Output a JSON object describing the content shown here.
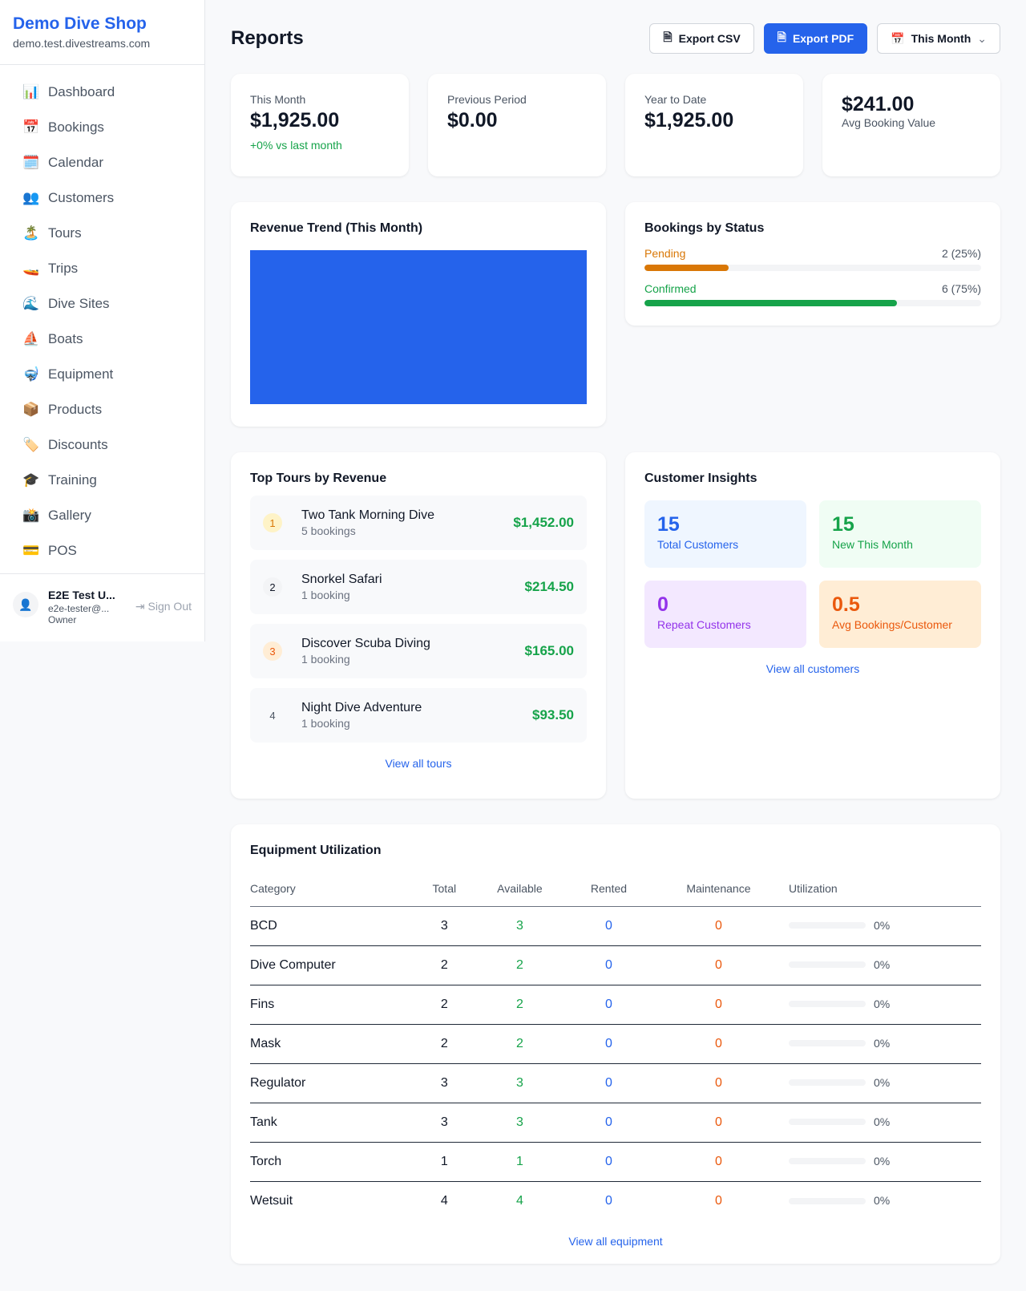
{
  "sidebar": {
    "brand": "Demo Dive Shop",
    "domain": "demo.test.divestreams.com",
    "items": [
      {
        "icon": "📊",
        "label": "Dashboard"
      },
      {
        "icon": "📅",
        "label": "Bookings"
      },
      {
        "icon": "🗓️",
        "label": "Calendar"
      },
      {
        "icon": "👥",
        "label": "Customers"
      },
      {
        "icon": "🏝️",
        "label": "Tours"
      },
      {
        "icon": "🚤",
        "label": "Trips"
      },
      {
        "icon": "🌊",
        "label": "Dive Sites"
      },
      {
        "icon": "⛵",
        "label": "Boats"
      },
      {
        "icon": "🤿",
        "label": "Equipment"
      },
      {
        "icon": "📦",
        "label": "Products"
      },
      {
        "icon": "🏷️",
        "label": "Discounts"
      },
      {
        "icon": "🎓",
        "label": "Training"
      },
      {
        "icon": "📸",
        "label": "Gallery"
      },
      {
        "icon": "💳",
        "label": "POS"
      }
    ],
    "user": {
      "name": "E2E Test U...",
      "email": "e2e-tester@...",
      "role": "Owner",
      "sign_out": "Sign Out"
    }
  },
  "header": {
    "title": "Reports",
    "export_csv": "Export CSV",
    "export_pdf": "Export PDF",
    "period": "This Month"
  },
  "stats": [
    {
      "label": "This Month",
      "value": "$1,925.00",
      "change": "+0% vs last month"
    },
    {
      "label": "Previous Period",
      "value": "$0.00"
    },
    {
      "label": "Year to Date",
      "value": "$1,925.00"
    },
    {
      "value": "$241.00",
      "label": "Avg Booking Value"
    }
  ],
  "revenue": {
    "title": "Revenue Trend (This Month)"
  },
  "bookings_status": {
    "title": "Bookings by Status",
    "items": [
      {
        "label": "Pending",
        "count": "2 (25%)",
        "percent": 25,
        "color": "#d97706"
      },
      {
        "label": "Confirmed",
        "count": "6 (75%)",
        "percent": 75,
        "color": "#16a34a"
      }
    ]
  },
  "top_tours": {
    "title": "Top Tours by Revenue",
    "link": "View all tours",
    "items": [
      {
        "rank": "1",
        "name": "Two Tank Morning Dive",
        "bookings": "5 bookings",
        "revenue": "$1,452.00"
      },
      {
        "rank": "2",
        "name": "Snorkel Safari",
        "bookings": "1 booking",
        "revenue": "$214.50"
      },
      {
        "rank": "3",
        "name": "Discover Scuba Diving",
        "bookings": "1 booking",
        "revenue": "$165.00"
      },
      {
        "rank": "4",
        "name": "Night Dive Adventure",
        "bookings": "1 booking",
        "revenue": "$93.50"
      }
    ]
  },
  "customers": {
    "title": "Customer Insights",
    "link": "View all customers",
    "tiles": [
      {
        "value": "15",
        "label": "Total Customers",
        "bg": "#eff6ff",
        "color": "#2563eb"
      },
      {
        "value": "15",
        "label": "New This Month",
        "bg": "#f0fdf4",
        "color": "#16a34a"
      },
      {
        "value": "0",
        "label": "Repeat Customers",
        "bg": "#f3e8ff",
        "color": "#9333ea"
      },
      {
        "value": "0.5",
        "label": "Avg Bookings/Customer",
        "bg": "#ffedd5",
        "color": "#ea580c"
      }
    ]
  },
  "equipment": {
    "title": "Equipment Utilization",
    "link": "View all equipment",
    "columns": [
      "Category",
      "Total",
      "Available",
      "Rented",
      "Maintenance",
      "Utilization"
    ],
    "rows": [
      {
        "category": "BCD",
        "total": "3",
        "available": "3",
        "rented": "0",
        "maintenance": "0",
        "utilization": "0%"
      },
      {
        "category": "Dive Computer",
        "total": "2",
        "available": "2",
        "rented": "0",
        "maintenance": "0",
        "utilization": "0%"
      },
      {
        "category": "Fins",
        "total": "2",
        "available": "2",
        "rented": "0",
        "maintenance": "0",
        "utilization": "0%"
      },
      {
        "category": "Mask",
        "total": "2",
        "available": "2",
        "rented": "0",
        "maintenance": "0",
        "utilization": "0%"
      },
      {
        "category": "Regulator",
        "total": "3",
        "available": "3",
        "rented": "0",
        "maintenance": "0",
        "utilization": "0%"
      },
      {
        "category": "Tank",
        "total": "3",
        "available": "3",
        "rented": "0",
        "maintenance": "0",
        "utilization": "0%"
      },
      {
        "category": "Torch",
        "total": "1",
        "available": "1",
        "rented": "0",
        "maintenance": "0",
        "utilization": "0%"
      },
      {
        "category": "Wetsuit",
        "total": "4",
        "available": "4",
        "rented": "0",
        "maintenance": "0",
        "utilization": "0%"
      }
    ]
  }
}
